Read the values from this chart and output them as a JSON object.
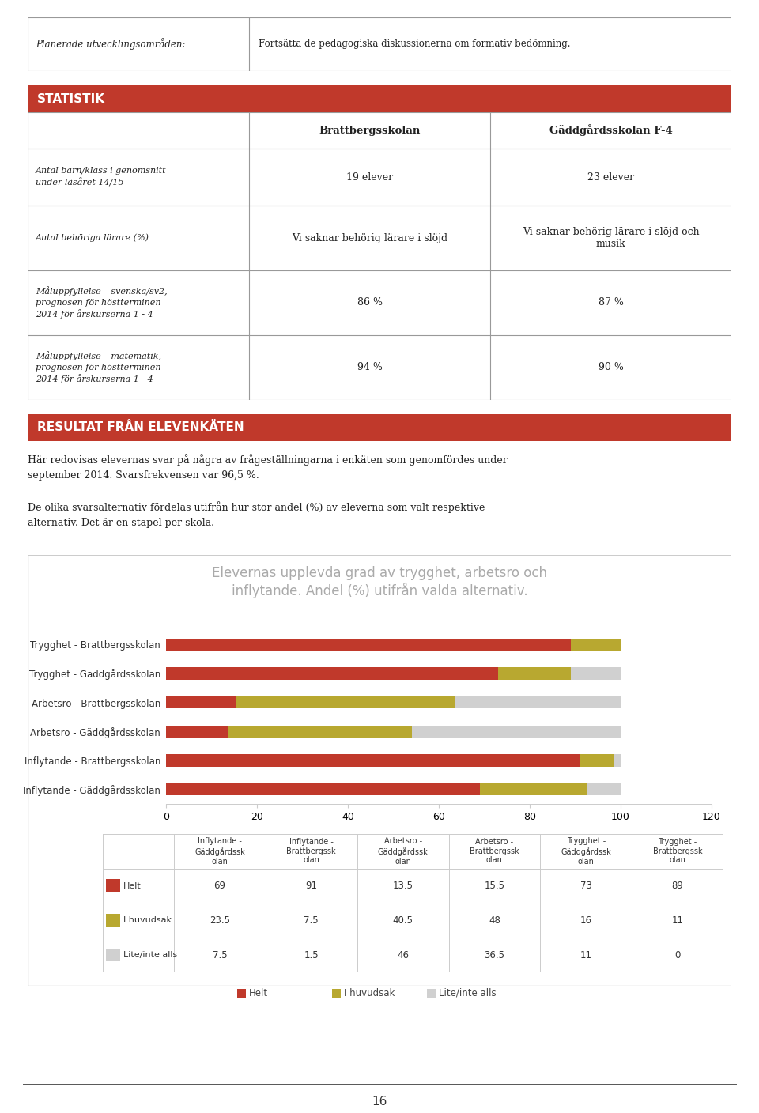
{
  "page_bg": "#ffffff",
  "top_table": {
    "label": "Planerade utvecklingsområden:",
    "value": "Fortsätta de pedagogiska diskussionerna om formativ bedömning."
  },
  "statistik_header": "STATISTIK",
  "header_bg": "#c0392b",
  "header_text_color": "#ffffff",
  "col_headers": [
    "",
    "Brattbergsskolan",
    "Gäddgårdsskolan F-4"
  ],
  "rows": [
    {
      "label": "Antal barn/klass i genomsnitt\nunder läsåret 14/15",
      "bratt": "19 elever",
      "gadd": "23 elever"
    },
    {
      "label": "Antal behöriga lärare (%)",
      "bratt": "Vi saknar behörig lärare i slöjd",
      "gadd": "Vi saknar behörig lärare i slöjd och\nmusik"
    },
    {
      "label": "Måluppfyllelse – svenska/sv2,\nprognosen för höstterminen\n2014 för årskurserna 1 - 4",
      "bratt": "86 %",
      "gadd": "87 %"
    },
    {
      "label": "Måluppfyllelse – matematik,\nprognosen för höstterminen\n2014 för årskurserna 1 - 4",
      "bratt": "94 %",
      "gadd": "90 %"
    }
  ],
  "resultat_header": "RESULTAT FRÅN ELEVENKÄTEN",
  "para1": "Här redovisas elevernas svar på några av frågeställningarna i enkäten som genomfördes under\nseptember 2014. Svarsfrekvensen var 96,5 %.",
  "para2": "De olika svarsalternativ fördelas utifrån hur stor andel (%) av eleverna som valt respektive\nalternativ. Det är en stapel per skola.",
  "chart_title": "Elevernas upplevda grad av trygghet, arbetsro och\ninflytande. Andel (%) utifrån valda alternativ.",
  "bar_categories": [
    "Trygghet - Brattbergsskolan",
    "Trygghet - Gäddgårdsskolan",
    "Arbetsro - Brattbergsskolan",
    "Arbetsro - Gäddgårdsskolan",
    "Inflytande - Brattbergsskolan",
    "Inflytande - Gäddgårdsskolan"
  ],
  "helt": [
    89,
    73,
    15.5,
    13.5,
    91,
    69
  ],
  "i_huvudsak": [
    11,
    16,
    48,
    40.5,
    7.5,
    23.5
  ],
  "lite_inte_alls": [
    0,
    11,
    36.5,
    46,
    1.5,
    7.5
  ],
  "color_helt": "#c0392b",
  "color_huvudsak": "#b8a830",
  "color_lite": "#d0d0d0",
  "table_cols": [
    "Inflytande -\nGäddgårdssk\nolan",
    "Inflytande -\nBrattbergssk\nolan",
    "Arbetsro -\nGäddgårdssk\nolan",
    "Arbetsro -\nBrattbergssk\nolan",
    "Trygghet -\nGäddgårdssk\nolan",
    "Trygghet -\nBrattbergssk\nolan"
  ],
  "table_helt": [
    69,
    91,
    13.5,
    15.5,
    73,
    89
  ],
  "table_huvud": [
    23.5,
    7.5,
    40.5,
    48,
    16,
    11
  ],
  "table_lite": [
    7.5,
    1.5,
    46,
    36.5,
    11,
    0
  ],
  "page_num": "16"
}
